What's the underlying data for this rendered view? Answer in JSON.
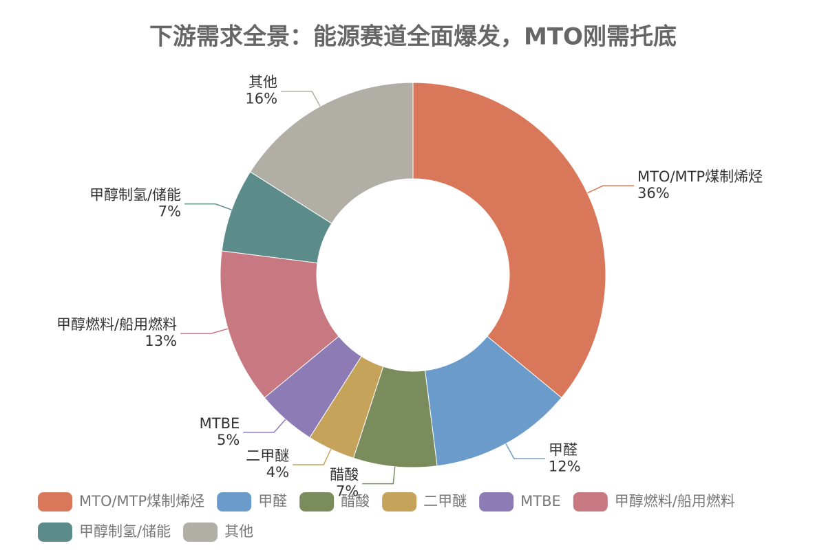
{
  "chart_data": {
    "type": "pie",
    "title": "下游需求全景：能源赛道全面爆发，MTO刚需托底",
    "categories": [
      "MTO/MTP煤制烯烃",
      "甲醛",
      "醋酸",
      "二甲醚",
      "MTBE",
      "甲醇燃料/船用燃料",
      "甲醇制氢/储能",
      "其他"
    ],
    "values": [
      36,
      12,
      7,
      4,
      5,
      13,
      7,
      16
    ],
    "value_labels": [
      "36%",
      "12%",
      "7%",
      "4%",
      "5%",
      "13%",
      "7%",
      "16%"
    ],
    "colors": [
      "#d9775a",
      "#6a9bcb",
      "#7a8c5c",
      "#c6a35a",
      "#8c7bb4",
      "#c87880",
      "#5b8c8a",
      "#b0aea5"
    ],
    "legend": "bottom"
  }
}
